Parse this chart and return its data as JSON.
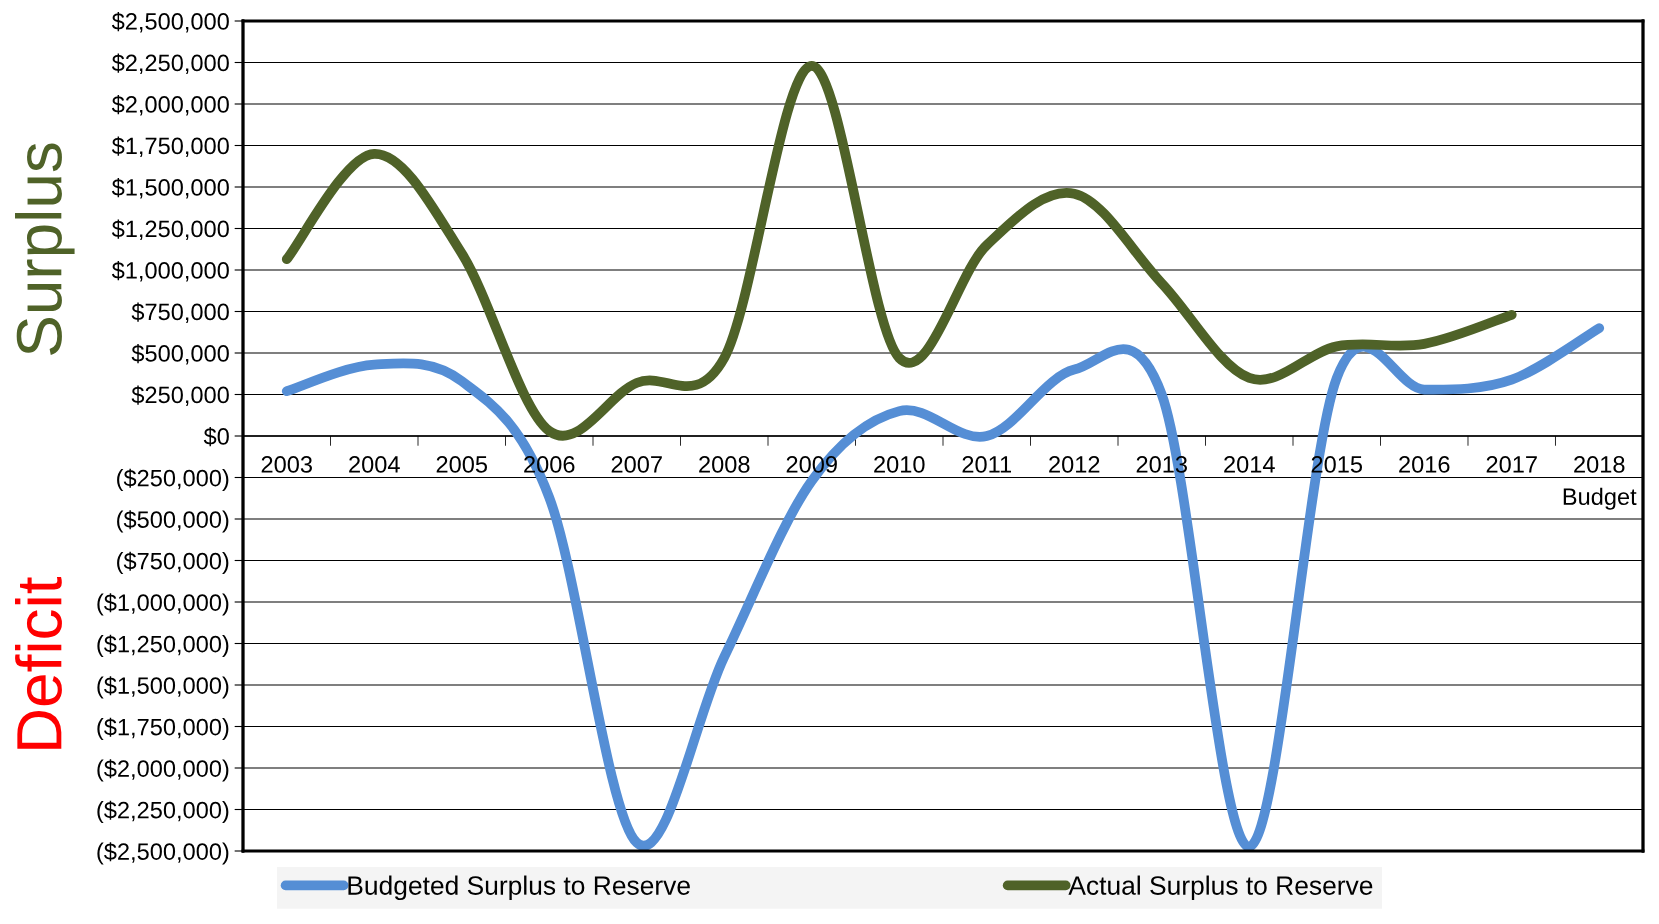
{
  "chart_data": {
    "type": "line",
    "categories": [
      "2003",
      "2004",
      "2005",
      "2006",
      "2007",
      "2008",
      "2009",
      "2010",
      "2011",
      "2012",
      "2013",
      "2014",
      "2015",
      "2016",
      "2017",
      "2018\nBudget"
    ],
    "series": [
      {
        "name": "Budgeted Surplus to Reserve",
        "color": "#558ed5",
        "values": [
          270000,
          430000,
          330000,
          -370000,
          -2450000,
          -1330000,
          -270000,
          150000,
          0,
          400000,
          250000,
          -2475000,
          350000,
          280000,
          340000,
          650000
        ]
      },
      {
        "name": "Actual Surplus to Reserve",
        "color": "#4f6228",
        "values": [
          1065000,
          1700000,
          1100000,
          30000,
          320000,
          470000,
          2230000,
          470000,
          1150000,
          1460000,
          920000,
          350000,
          540000,
          555000,
          730000,
          null
        ]
      }
    ],
    "ylim": [
      -2500000,
      2500000
    ],
    "yticks": [
      {
        "value": -2500000,
        "label": "($2,500,000)"
      },
      {
        "value": -2250000,
        "label": "($2,250,000)"
      },
      {
        "value": -2000000,
        "label": "($2,000,000)"
      },
      {
        "value": -1750000,
        "label": "($1,750,000)"
      },
      {
        "value": -1500000,
        "label": "($1,500,000)"
      },
      {
        "value": -1250000,
        "label": "($1,250,000)"
      },
      {
        "value": -1000000,
        "label": "($1,000,000)"
      },
      {
        "value": -750000,
        "label": "($750,000)"
      },
      {
        "value": -500000,
        "label": "($500,000)"
      },
      {
        "value": -250000,
        "label": "($250,000)"
      },
      {
        "value": 0,
        "label": "$0"
      },
      {
        "value": 250000,
        "label": "$250,000"
      },
      {
        "value": 500000,
        "label": "$500,000"
      },
      {
        "value": 750000,
        "label": "$750,000"
      },
      {
        "value": 1000000,
        "label": "$1,000,000"
      },
      {
        "value": 1250000,
        "label": "$1,250,000"
      },
      {
        "value": 1500000,
        "label": "$1,500,000"
      },
      {
        "value": 1750000,
        "label": "$1,750,000"
      },
      {
        "value": 2000000,
        "label": "$2,000,000"
      },
      {
        "value": 2250000,
        "label": "$2,250,000"
      },
      {
        "value": 2500000,
        "label": "$2,500,000"
      }
    ],
    "grid": "y",
    "legend": "bottom",
    "marker": "none",
    "line_style": "solid",
    "annotations": [
      "Surplus",
      "Deficit"
    ]
  }
}
